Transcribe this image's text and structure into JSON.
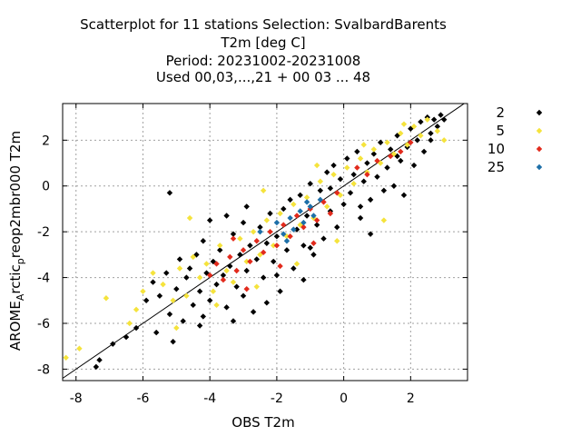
{
  "chart_data": {
    "type": "scatter",
    "title_lines": [
      "Scatterplot for   11 stations Selection: SvalbardBarents",
      "T2m [deg C]",
      "Period: 20231002-20231008",
      "Used  00,03,...,21  + 00 03 ... 48"
    ],
    "xlabel": "OBS T2m",
    "ylabel_parts": [
      "AROME",
      "A",
      "rctic",
      "p",
      "reop2mbr000 T2m"
    ],
    "xlim": [
      -8.4,
      3.7
    ],
    "ylim": [
      -8.5,
      3.6
    ],
    "xticks": [
      -8,
      -6,
      -4,
      -2,
      0,
      2
    ],
    "yticks": [
      -8,
      -6,
      -4,
      -2,
      0,
      2
    ],
    "xtick_labels": [
      "-8",
      "-6",
      "-4",
      "-2",
      "0",
      "2"
    ],
    "ytick_labels": [
      "-8",
      "-6",
      "-4",
      "-2",
      "0",
      "2"
    ],
    "grid": true,
    "diagonal": true,
    "legend_position": "outside-right",
    "series": [
      {
        "name": "2",
        "color": "#000000",
        "points": [
          [
            -7.4,
            -7.9
          ],
          [
            -7.3,
            -7.6
          ],
          [
            -6.5,
            -6.6
          ],
          [
            -6.2,
            -6.2
          ],
          [
            -5.9,
            -5.0
          ],
          [
            -5.7,
            -4.2
          ],
          [
            -5.5,
            -4.8
          ],
          [
            -5.3,
            -3.8
          ],
          [
            -5.2,
            -5.6
          ],
          [
            -5.0,
            -4.5
          ],
          [
            -4.9,
            -3.2
          ],
          [
            -4.8,
            -5.9
          ],
          [
            -4.7,
            -4.0
          ],
          [
            -4.6,
            -3.6
          ],
          [
            -4.5,
            -5.2
          ],
          [
            -4.4,
            -3.0
          ],
          [
            -4.3,
            -4.6
          ],
          [
            -4.2,
            -2.4
          ],
          [
            -4.1,
            -3.8
          ],
          [
            -4.0,
            -5.0
          ],
          [
            -3.9,
            -3.3
          ],
          [
            -3.8,
            -4.3
          ],
          [
            -3.7,
            -2.8
          ],
          [
            -3.6,
            -3.9
          ],
          [
            -3.5,
            -5.3
          ],
          [
            -3.4,
            -3.5
          ],
          [
            -3.3,
            -2.1
          ],
          [
            -3.2,
            -4.4
          ],
          [
            -3.1,
            -3.0
          ],
          [
            -3.0,
            -1.6
          ],
          [
            -2.9,
            -3.7
          ],
          [
            -2.8,
            -2.6
          ],
          [
            -2.7,
            -5.5
          ],
          [
            -2.6,
            -3.2
          ],
          [
            -2.5,
            -1.8
          ],
          [
            -2.4,
            -4.0
          ],
          [
            -2.3,
            -2.5
          ],
          [
            -2.2,
            -1.2
          ],
          [
            -2.1,
            -3.3
          ],
          [
            -2.0,
            -2.2
          ],
          [
            -1.9,
            -4.6
          ],
          [
            -1.8,
            -1.0
          ],
          [
            -1.7,
            -2.8
          ],
          [
            -1.6,
            -0.6
          ],
          [
            -1.5,
            -3.6
          ],
          [
            -1.4,
            -1.9
          ],
          [
            -1.3,
            -0.4
          ],
          [
            -1.2,
            -2.6
          ],
          [
            -1.1,
            -1.3
          ],
          [
            -1.0,
            0.1
          ],
          [
            -0.9,
            -3.0
          ],
          [
            -0.8,
            -1.7
          ],
          [
            -0.7,
            -0.2
          ],
          [
            -0.6,
            -2.3
          ],
          [
            -0.5,
            0.6
          ],
          [
            -0.4,
            -1.1
          ],
          [
            -0.3,
            0.9
          ],
          [
            -0.2,
            -1.8
          ],
          [
            -0.1,
            0.3
          ],
          [
            0.0,
            -0.8
          ],
          [
            0.1,
            1.2
          ],
          [
            0.2,
            -0.3
          ],
          [
            0.3,
            0.5
          ],
          [
            0.4,
            1.5
          ],
          [
            0.5,
            -1.4
          ],
          [
            0.6,
            0.2
          ],
          [
            0.7,
            1.0
          ],
          [
            0.8,
            -0.6
          ],
          [
            0.9,
            1.4
          ],
          [
            1.0,
            0.4
          ],
          [
            1.1,
            1.9
          ],
          [
            1.2,
            -0.2
          ],
          [
            1.3,
            0.8
          ],
          [
            1.4,
            1.6
          ],
          [
            1.5,
            0.0
          ],
          [
            1.6,
            2.2
          ],
          [
            1.7,
            1.1
          ],
          [
            1.8,
            -0.4
          ],
          [
            1.9,
            1.7
          ],
          [
            2.0,
            2.5
          ],
          [
            2.1,
            0.9
          ],
          [
            2.2,
            2.0
          ],
          [
            2.3,
            2.8
          ],
          [
            2.4,
            1.5
          ],
          [
            2.5,
            3.0
          ],
          [
            2.6,
            2.3
          ],
          [
            2.7,
            2.9
          ],
          [
            2.8,
            2.6
          ],
          [
            2.9,
            3.1
          ],
          [
            3.0,
            2.9
          ],
          [
            -5.1,
            -6.8
          ],
          [
            -4.3,
            -6.1
          ],
          [
            -3.3,
            -5.9
          ],
          [
            -2.3,
            -5.1
          ],
          [
            -3.5,
            -1.3
          ],
          [
            -4.0,
            -1.5
          ],
          [
            -5.2,
            -0.3
          ],
          [
            -2.9,
            -0.9
          ],
          [
            -1.2,
            -4.1
          ],
          [
            0.8,
            -2.1
          ],
          [
            -6.9,
            -6.9
          ],
          [
            -5.6,
            -6.4
          ],
          [
            -4.2,
            -5.7
          ],
          [
            -3.0,
            -4.8
          ],
          [
            -2.0,
            -3.9
          ],
          [
            -1.0,
            -2.7
          ],
          [
            0.5,
            -0.9
          ],
          [
            1.6,
            1.3
          ],
          [
            2.6,
            2.0
          ],
          [
            -0.4,
            -0.1
          ]
        ]
      },
      {
        "name": "5",
        "color": "#f5e33c",
        "points": [
          [
            -8.3,
            -7.5
          ],
          [
            -7.9,
            -7.1
          ],
          [
            -7.1,
            -4.9
          ],
          [
            -6.4,
            -6.0
          ],
          [
            -6.0,
            -4.6
          ],
          [
            -5.7,
            -3.8
          ],
          [
            -5.4,
            -4.3
          ],
          [
            -5.1,
            -5.0
          ],
          [
            -4.9,
            -3.6
          ],
          [
            -4.7,
            -4.8
          ],
          [
            -4.5,
            -3.1
          ],
          [
            -4.3,
            -4.0
          ],
          [
            -4.1,
            -3.4
          ],
          [
            -3.9,
            -4.6
          ],
          [
            -3.7,
            -2.6
          ],
          [
            -3.5,
            -3.7
          ],
          [
            -3.3,
            -4.2
          ],
          [
            -3.1,
            -2.3
          ],
          [
            -2.9,
            -3.3
          ],
          [
            -2.7,
            -2.0
          ],
          [
            -2.5,
            -3.0
          ],
          [
            -2.3,
            -1.5
          ],
          [
            -2.1,
            -2.6
          ],
          [
            -1.9,
            -1.2
          ],
          [
            -1.7,
            -2.2
          ],
          [
            -1.5,
            -0.8
          ],
          [
            -1.3,
            -1.7
          ],
          [
            -1.1,
            -0.5
          ],
          [
            -0.9,
            -1.4
          ],
          [
            -0.7,
            0.2
          ],
          [
            -0.5,
            -0.9
          ],
          [
            -0.3,
            0.5
          ],
          [
            -0.1,
            -0.4
          ],
          [
            0.1,
            0.8
          ],
          [
            0.3,
            0.1
          ],
          [
            0.5,
            1.2
          ],
          [
            0.7,
            0.6
          ],
          [
            0.9,
            1.6
          ],
          [
            1.1,
            1.0
          ],
          [
            1.3,
            1.9
          ],
          [
            1.5,
            1.4
          ],
          [
            1.7,
            2.3
          ],
          [
            1.9,
            1.8
          ],
          [
            2.1,
            2.6
          ],
          [
            2.3,
            2.2
          ],
          [
            2.5,
            2.9
          ],
          [
            2.8,
            2.4
          ],
          [
            3.0,
            2.0
          ],
          [
            -5.0,
            -6.2
          ],
          [
            -3.8,
            -5.2
          ],
          [
            -2.6,
            -4.4
          ],
          [
            -1.4,
            -3.4
          ],
          [
            -0.2,
            -2.4
          ],
          [
            1.2,
            -1.5
          ],
          [
            -4.6,
            -1.4
          ],
          [
            -2.4,
            -0.2
          ],
          [
            -0.8,
            0.9
          ],
          [
            0.6,
            1.8
          ],
          [
            1.8,
            2.7
          ],
          [
            -6.2,
            -5.4
          ]
        ]
      },
      {
        "name": "10",
        "color": "#e22a1c",
        "points": [
          [
            -4.0,
            -3.9
          ],
          [
            -3.8,
            -3.4
          ],
          [
            -3.6,
            -4.1
          ],
          [
            -3.4,
            -3.1
          ],
          [
            -3.2,
            -3.7
          ],
          [
            -3.0,
            -2.8
          ],
          [
            -2.8,
            -3.3
          ],
          [
            -2.6,
            -2.4
          ],
          [
            -2.4,
            -2.9
          ],
          [
            -2.2,
            -2.0
          ],
          [
            -2.0,
            -2.6
          ],
          [
            -1.8,
            -1.7
          ],
          [
            -1.6,
            -2.2
          ],
          [
            -1.4,
            -1.3
          ],
          [
            -1.2,
            -1.8
          ],
          [
            -1.0,
            -1.0
          ],
          [
            -0.8,
            -1.5
          ],
          [
            -0.6,
            -0.7
          ],
          [
            -0.4,
            -1.2
          ],
          [
            -0.2,
            -0.3
          ],
          [
            0.4,
            0.8
          ],
          [
            0.7,
            0.5
          ],
          [
            1.0,
            1.1
          ],
          [
            1.4,
            1.3
          ],
          [
            1.7,
            1.5
          ],
          [
            2.0,
            1.9
          ],
          [
            -2.9,
            -4.5
          ],
          [
            -1.9,
            -3.5
          ],
          [
            -0.9,
            -2.5
          ],
          [
            -3.3,
            -2.3
          ]
        ]
      },
      {
        "name": "25",
        "color": "#1d6fa8",
        "points": [
          [
            -2.5,
            -2.0
          ],
          [
            -2.0,
            -1.6
          ],
          [
            -1.8,
            -2.1
          ],
          [
            -1.6,
            -1.4
          ],
          [
            -1.5,
            -1.9
          ],
          [
            -1.3,
            -1.1
          ],
          [
            -1.2,
            -1.6
          ],
          [
            -1.0,
            -0.9
          ],
          [
            -0.9,
            -1.3
          ],
          [
            -0.7,
            -0.6
          ],
          [
            -1.7,
            -2.4
          ],
          [
            -1.1,
            -0.7
          ]
        ]
      }
    ]
  }
}
